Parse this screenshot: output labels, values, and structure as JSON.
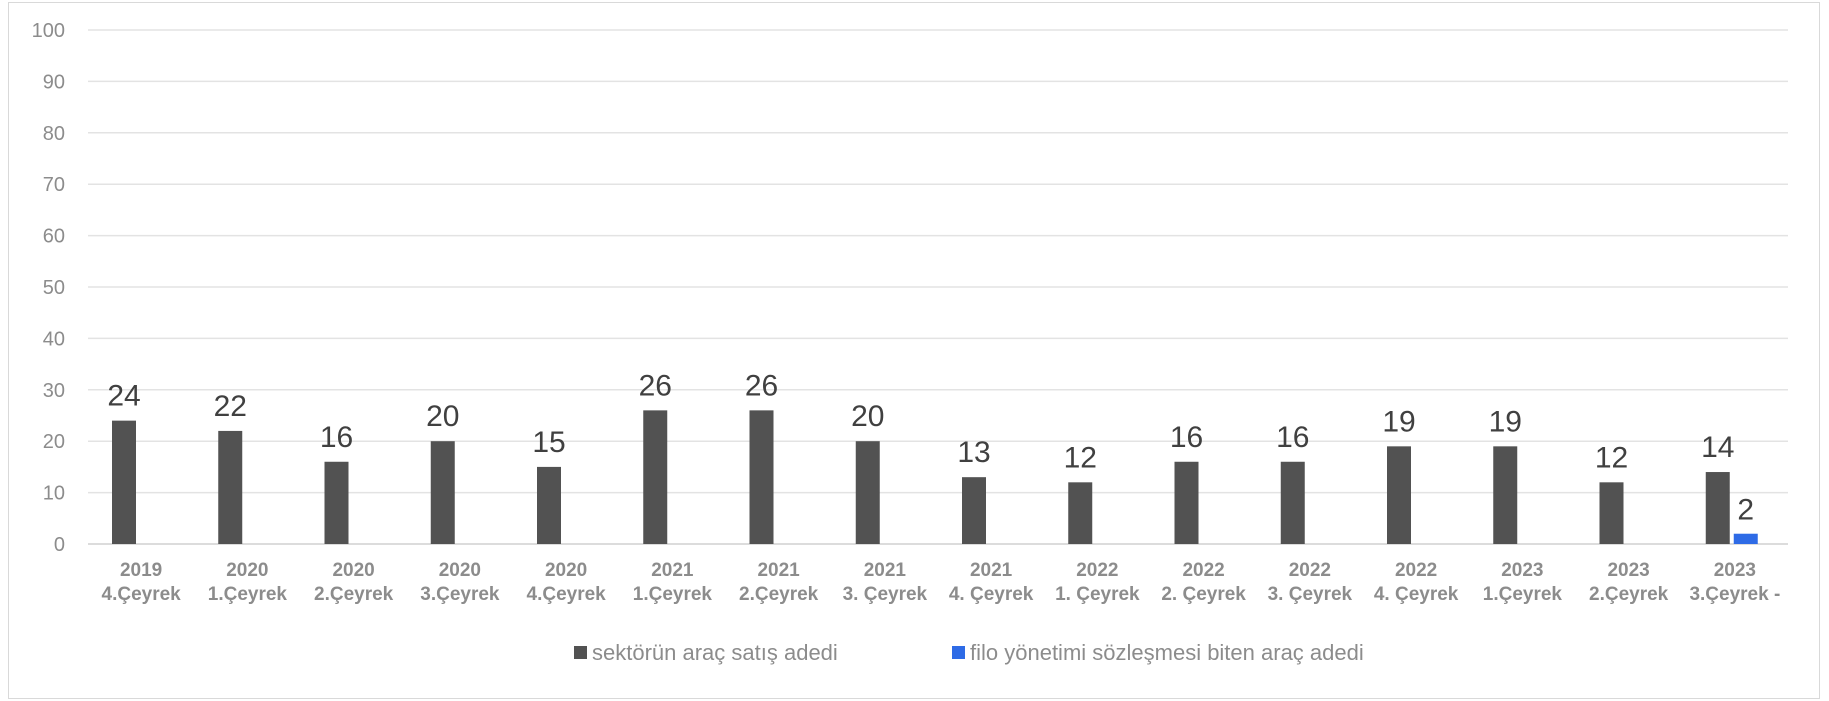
{
  "chart_data": {
    "type": "bar",
    "title": "",
    "xlabel": "",
    "ylabel": "",
    "ylim": [
      0,
      100
    ],
    "yticks": [
      0,
      10,
      20,
      30,
      40,
      50,
      60,
      70,
      80,
      90,
      100
    ],
    "grid": true,
    "legend_position": "bottom",
    "categories": [
      [
        "2019",
        "4.Çeyrek"
      ],
      [
        "2020",
        "1.Çeyrek"
      ],
      [
        "2020",
        "2.Çeyrek"
      ],
      [
        "2020",
        "3.Çeyrek"
      ],
      [
        "2020",
        "4.Çeyrek"
      ],
      [
        "2021",
        "1.Çeyrek"
      ],
      [
        "2021",
        "2.Çeyrek"
      ],
      [
        "2021",
        "3. Çeyrek"
      ],
      [
        "2021",
        "4. Çeyrek"
      ],
      [
        "2022",
        "1. Çeyrek"
      ],
      [
        "2022",
        "2. Çeyrek"
      ],
      [
        "2022",
        "3. Çeyrek"
      ],
      [
        "2022",
        "4. Çeyrek"
      ],
      [
        "2023",
        "1.Çeyrek"
      ],
      [
        "2023",
        "2.Çeyrek"
      ],
      [
        "2023",
        "3.Çeyrek -"
      ]
    ],
    "series": [
      {
        "name": "sektörün araç satış adedi",
        "color": "#525252",
        "values": [
          24,
          22,
          16,
          20,
          15,
          26,
          26,
          20,
          13,
          12,
          16,
          16,
          19,
          19,
          12,
          14
        ],
        "labels": [
          "24",
          "22",
          "16",
          "20",
          "15",
          "26",
          "26",
          "20",
          "13",
          "12",
          "16",
          "16",
          "19",
          "19",
          "12",
          "14"
        ]
      },
      {
        "name": "filo yönetimi sözleşmesi biten araç adedi",
        "color": "#2e6be6",
        "values": [
          null,
          null,
          null,
          null,
          null,
          null,
          null,
          null,
          null,
          null,
          null,
          null,
          null,
          null,
          null,
          2
        ],
        "labels": [
          "",
          "",
          "",
          "",
          "",
          "",
          "",
          "",
          "",
          "",
          "",
          "",
          "",
          "",
          "",
          "2"
        ]
      }
    ]
  }
}
